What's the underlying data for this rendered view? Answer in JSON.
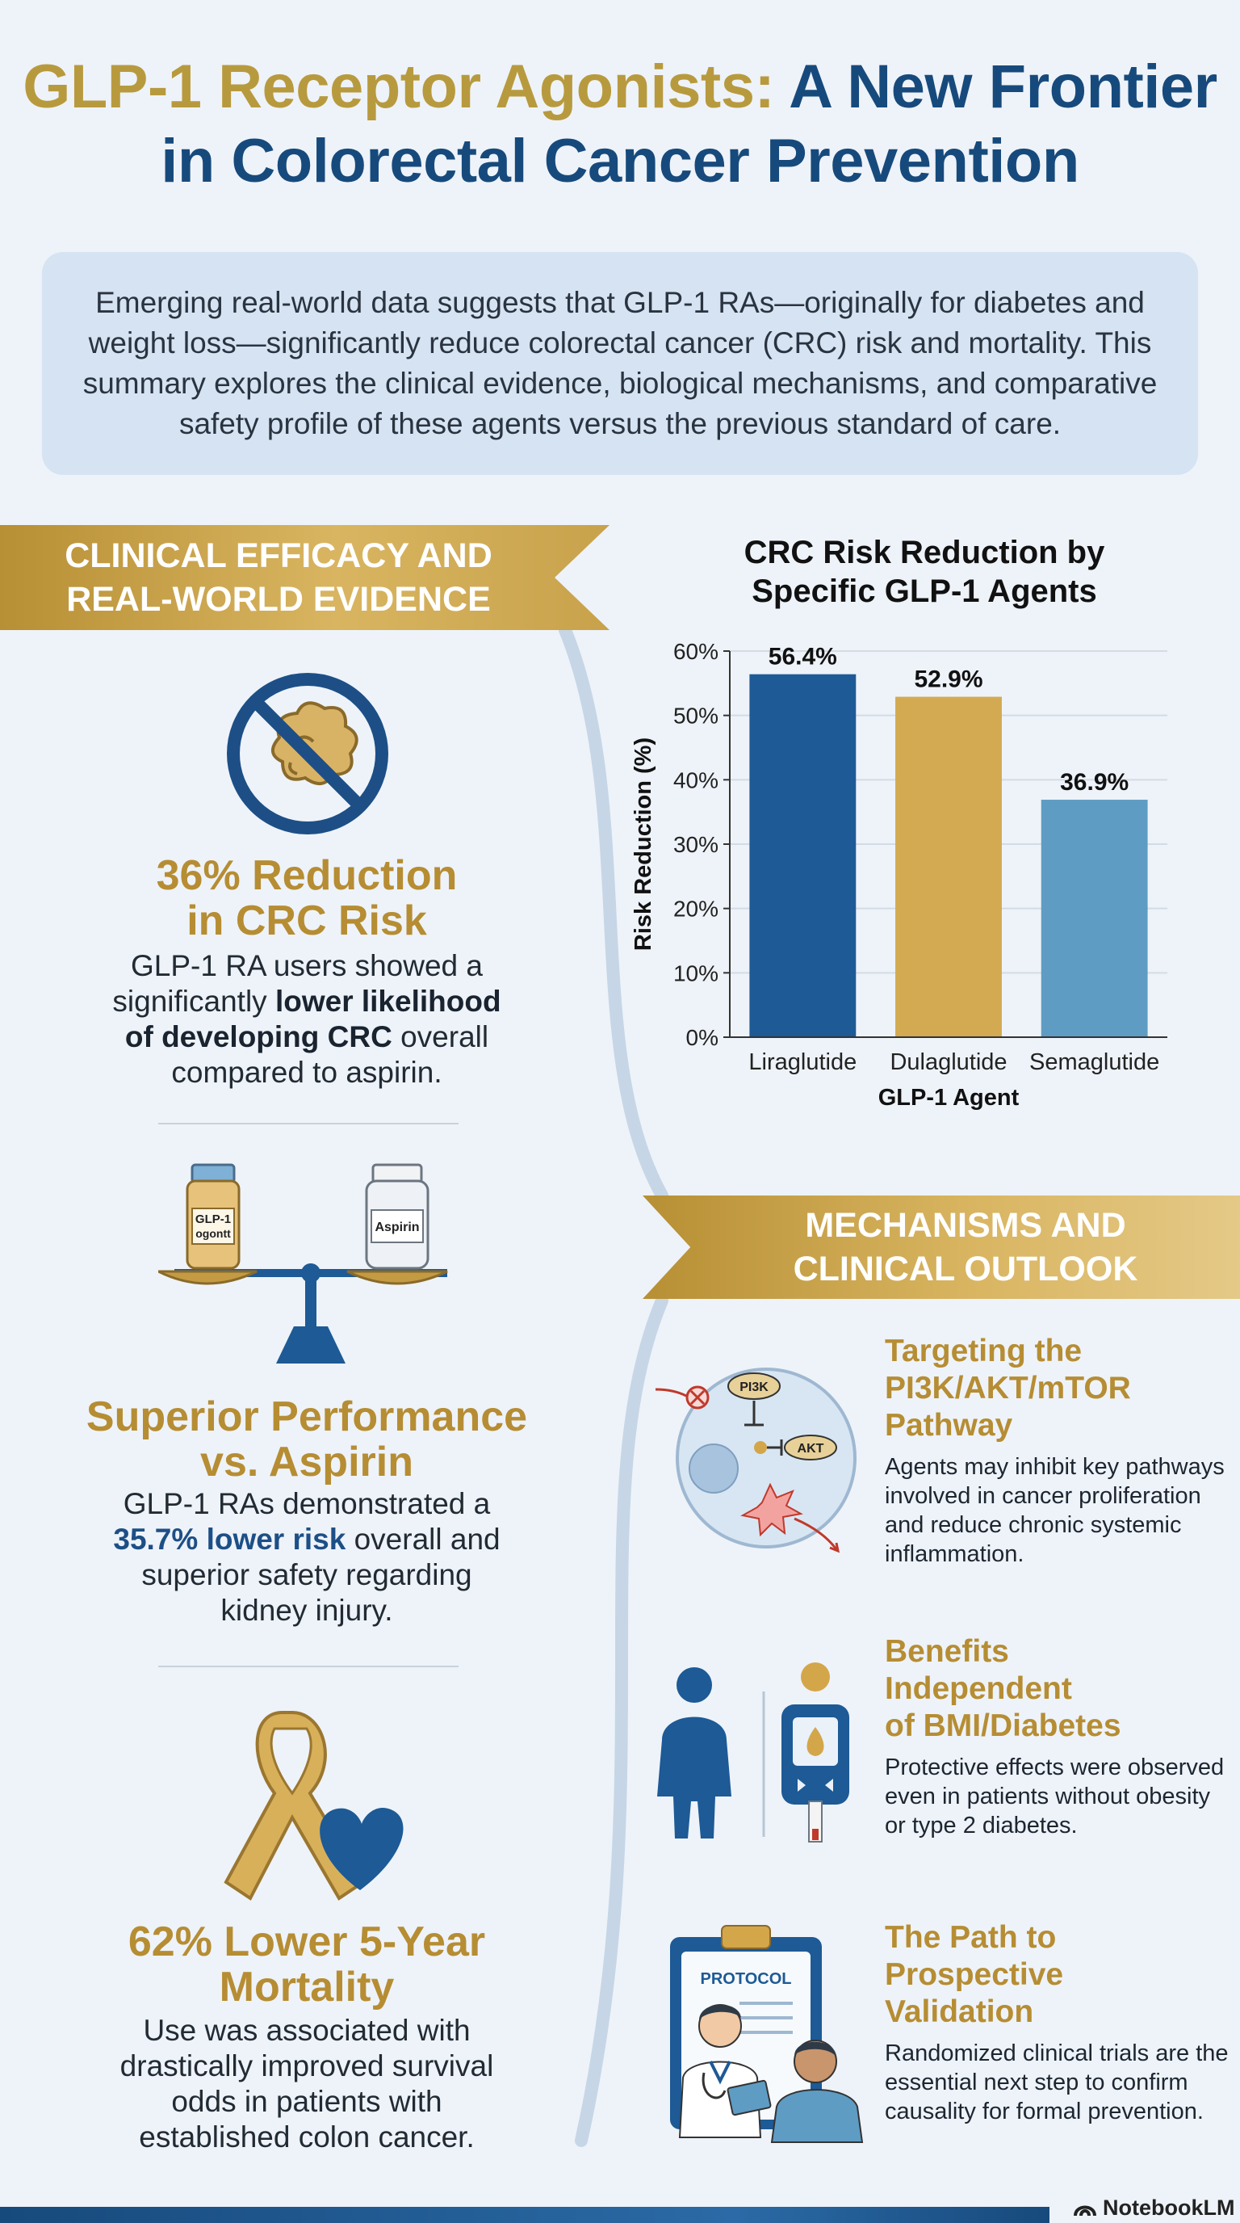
{
  "title": {
    "part1": "GLP-1 Receptor Agonists:",
    "part2": "A New Frontier",
    "line2": "in Colorectal Cancer Prevention"
  },
  "intro": "Emerging real-world data suggests that GLP-1 RAs—originally for diabetes and weight loss—significantly reduce colorectal cancer (CRC) risk and mortality. This summary explores the clinical evidence, biological mechanisms, and comparative safety profile of these agents versus the previous standard of care.",
  "ribbons": {
    "left": [
      "CLINICAL EFFICACY AND",
      "REAL-WORLD EVIDENCE"
    ],
    "right": [
      "MECHANISMS AND",
      "CLINICAL OUTLOOK"
    ]
  },
  "stats": [
    {
      "head": [
        "36% Reduction",
        "in CRC Risk"
      ],
      "body_pre": "GLP-1 RA users showed a significantly ",
      "body_bold": "lower likelihood of developing CRC",
      "body_post": " overall compared to aspirin."
    },
    {
      "head": [
        "Superior Performance",
        "vs. Aspirin"
      ],
      "body_pre": "GLP-1 RAs demonstrated a ",
      "body_bold": "35.7% lower risk",
      "body_post": " overall and superior safety regarding kidney injury."
    },
    {
      "head": [
        "62% Lower 5-Year",
        "Mortality"
      ],
      "body": "Use was associated with drastically improved survival odds in patients with established colon cancer."
    }
  ],
  "icons": {
    "vial_left_line1": "GLP-1",
    "vial_left_line2": "ogontt",
    "vial_right": "Aspirin",
    "pi3k": "PI3K",
    "akt": "AKT",
    "protocol": "PROTOCOL"
  },
  "chart_data": {
    "type": "bar",
    "title": "CRC Risk Reduction by Specific GLP-1 Agents",
    "xlabel": "GLP-1 Agent",
    "ylabel": "Risk Reduction (%)",
    "categories": [
      "Liraglutide",
      "Dulaglutide",
      "Semaglutide"
    ],
    "values": [
      56.4,
      52.9,
      36.9
    ],
    "value_labels": [
      "56.4%",
      "52.9%",
      "36.9%"
    ],
    "ylim": [
      0,
      60
    ],
    "yticks": [
      "0%",
      "10%",
      "20%",
      "30%",
      "40%",
      "50%",
      "60%"
    ],
    "colors": [
      "#1d5a96",
      "#d3aa52",
      "#5e9cc4"
    ],
    "grid": true
  },
  "mechanisms": [
    {
      "head": [
        "Targeting the",
        "PI3K/AKT/mTOR",
        "Pathway"
      ],
      "body": "Agents may inhibit key pathways involved in cancer proliferation and reduce chronic systemic inflammation."
    },
    {
      "head": [
        "Benefits",
        "Independent",
        "of BMI/Diabetes"
      ],
      "body": "Protective effects were observed even in patients without obesity or type 2 diabetes."
    },
    {
      "head": [
        "The Path to",
        "Prospective",
        "Validation"
      ],
      "body": "Randomized clinical trials are the essential next step to confirm causality for formal prevention."
    }
  ],
  "footer": {
    "brand": "NotebookLM"
  },
  "colors": {
    "gold": "#b68d33",
    "navy": "#174a7c",
    "background": "#eef3f9"
  }
}
